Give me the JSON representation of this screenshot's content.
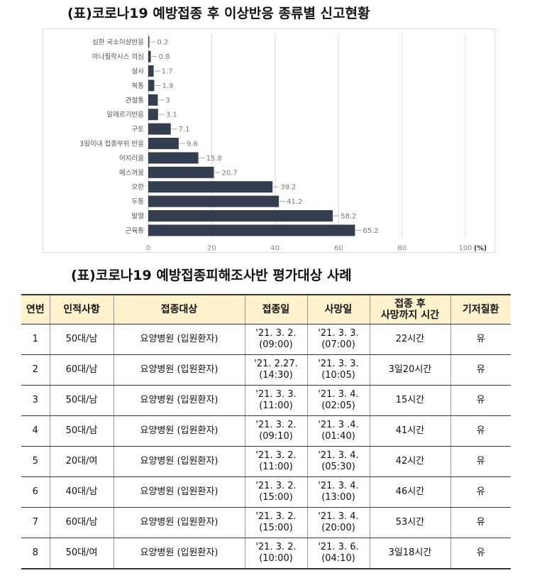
{
  "chart_title": "(표)코로나19 예방접종 후 이상반응 종류별 신고현황",
  "table_title": "(표)코로나19 예방접종피해조사반 평가대상 사례",
  "chart_data": {
    "type": "bar",
    "orientation": "horizontal",
    "categories": [
      "심한 국소이상반응",
      "아나필락시스 의심",
      "설사",
      "복통",
      "관절통",
      "알레르기반응",
      "구토",
      "3일이내 접종부위 반응",
      "어지러움",
      "메스꺼움",
      "오한",
      "두통",
      "발열",
      "근육통"
    ],
    "values": [
      0.2,
      0.8,
      1.7,
      1.9,
      3,
      3.1,
      7.1,
      9.6,
      15.8,
      20.7,
      39.2,
      41.2,
      58.2,
      65.2
    ],
    "value_labels": [
      "0.2",
      "0.8",
      "1.7",
      "1.9",
      "3",
      "3.1",
      "7.1",
      "9.6",
      "15.8",
      "20.7",
      "39.2",
      "41.2",
      "58.2",
      "65.2"
    ],
    "xlim": [
      0,
      100
    ],
    "xticks": [
      0,
      20,
      40,
      60,
      80,
      100
    ],
    "x_unit": "(%)",
    "bar_color": "#333f50",
    "grid": "vertical"
  },
  "table": {
    "headers": [
      "연번",
      "인적사항",
      "접종대상",
      "접종일",
      "사망일",
      "접종 후\n사망까지 시간",
      "기저질환"
    ],
    "rows": [
      [
        "1",
        "50대/남",
        "요양병원 (입원환자)",
        "'21. 3. 2.\n(09:00)",
        "'21. 3. 3.\n(07:00)",
        "22시간",
        "유"
      ],
      [
        "2",
        "60대/남",
        "요양병원 (입원환자)",
        "'21. 2.27.\n(14:30)",
        "'21. 3. 3.\n(10:05)",
        "3일20시간",
        "유"
      ],
      [
        "3",
        "50대/남",
        "요양병원 (입원환자)",
        "'21. 3. 3.\n(11:00)",
        "'21. 3. 4.\n(02:05)",
        "15시간",
        "유"
      ],
      [
        "4",
        "50대/남",
        "요양병원 (입원환자)",
        "'21. 3. 2.\n(09:10)",
        "'21. 3 .4.\n(01:40)",
        "41시간",
        "유"
      ],
      [
        "5",
        "20대/여",
        "요양병원 (입원환자)",
        "'21. 3. 2.\n(11:00)",
        "'21. 3. 4.\n(05:30)",
        "42시간",
        "유"
      ],
      [
        "6",
        "40대/남",
        "요양병원 (입원환자)",
        "'21. 3. 2.\n(15:00)",
        "'21. 3. 4.\n(13:00)",
        "46시간",
        "유"
      ],
      [
        "7",
        "60대/남",
        "요양병원 (입원환자)",
        "'21. 3. 2.\n(15:00)",
        "'21. 3. 4.\n(20:00)",
        "53시간",
        "유"
      ],
      [
        "8",
        "50대/여",
        "요양병원 (입원환자)",
        "'21. 3. 2.\n(10:00)",
        "'21. 3. 6.\n(04:10)",
        "3일18시간",
        "유"
      ]
    ]
  }
}
